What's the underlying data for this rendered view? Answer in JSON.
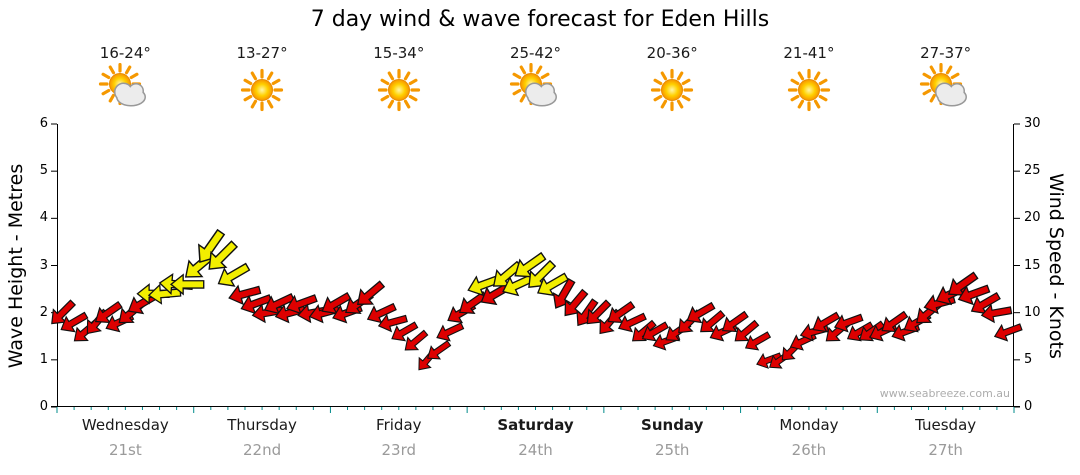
{
  "title": "7 day wind & wave forecast for Eden Hills",
  "watermark": "www.seabreeze.com.au",
  "left_axis": {
    "label": "Wave Height - Metres",
    "min": 0,
    "max": 6,
    "ticks": [
      0,
      1,
      2,
      3,
      4,
      5,
      6
    ]
  },
  "right_axis": {
    "label": "Wind Speed - Knots",
    "min": 0,
    "max": 30,
    "ticks": [
      0,
      5,
      10,
      15,
      20,
      25,
      30
    ]
  },
  "days": [
    {
      "name": "Wednesday",
      "date": "21st",
      "temps": "16-24°",
      "icon": "sun-cloud",
      "bold": false
    },
    {
      "name": "Thursday",
      "date": "22nd",
      "temps": "13-27°",
      "icon": "sun",
      "bold": false
    },
    {
      "name": "Friday",
      "date": "23rd",
      "temps": "15-34°",
      "icon": "sun",
      "bold": false
    },
    {
      "name": "Saturday",
      "date": "24th",
      "temps": "25-42°",
      "icon": "sun-cloud",
      "bold": true
    },
    {
      "name": "Sunday",
      "date": "25th",
      "temps": "20-36°",
      "icon": "sun",
      "bold": true
    },
    {
      "name": "Monday",
      "date": "26th",
      "temps": "21-41°",
      "icon": "sun",
      "bold": false
    },
    {
      "name": "Tuesday",
      "date": "27th",
      "temps": "27-37°",
      "icon": "sun-cloud",
      "bold": false
    }
  ],
  "colors": {
    "arrow_red": "#dd0000",
    "arrow_yellow": "#f2ee00",
    "arrow_outline": "#111111",
    "axis_black": "#000000",
    "minor_tick_teal": "#008b8b",
    "date_gray": "#9a9a9a"
  },
  "chart_data": {
    "type": "wind-arrows",
    "title": "7 day wind & wave forecast for Eden Hills",
    "x_categories": [
      "Wednesday 21st",
      "Thursday 22nd",
      "Friday 23rd",
      "Saturday 24th",
      "Sunday 25th",
      "Monday 26th",
      "Tuesday 27th"
    ],
    "points_per_day": 12,
    "wave_axis": {
      "label": "Wave Height - Metres",
      "range": [
        0,
        6
      ]
    },
    "wind_axis": {
      "label": "Wind Speed - Knots",
      "range": [
        0,
        30
      ]
    },
    "wind_knots": [
      10,
      9,
      8,
      9,
      10,
      9,
      10,
      11,
      12,
      12,
      13,
      13,
      15,
      17,
      16,
      14,
      12,
      11,
      10,
      11,
      10,
      11,
      10,
      10,
      11,
      10,
      11,
      12,
      10,
      9,
      8,
      7,
      5,
      6,
      8,
      10,
      11,
      13,
      12,
      14,
      13,
      15,
      14,
      13,
      12,
      11,
      10,
      10,
      9,
      10,
      9,
      8,
      8,
      7,
      8,
      9,
      10,
      9,
      8,
      9,
      8,
      7,
      5,
      5,
      6,
      7,
      8,
      9,
      8,
      9,
      8,
      8,
      8,
      9,
      8,
      9,
      10,
      11,
      12,
      13,
      12,
      11,
      10,
      8
    ],
    "wind_color": [
      "r",
      "r",
      "r",
      "r",
      "r",
      "r",
      "r",
      "r",
      "y",
      "y",
      "y",
      "y",
      "y",
      "y",
      "y",
      "y",
      "r",
      "r",
      "r",
      "r",
      "r",
      "r",
      "r",
      "r",
      "r",
      "r",
      "r",
      "r",
      "r",
      "r",
      "r",
      "r",
      "r",
      "r",
      "r",
      "r",
      "r",
      "y",
      "r",
      "y",
      "y",
      "y",
      "y",
      "y",
      "r",
      "r",
      "r",
      "r",
      "r",
      "r",
      "r",
      "r",
      "r",
      "r",
      "r",
      "r",
      "r",
      "r",
      "r",
      "r",
      "r",
      "r",
      "r",
      "r",
      "r",
      "r",
      "r",
      "r",
      "r",
      "r",
      "r",
      "r",
      "r",
      "r",
      "r",
      "r",
      "r",
      "r",
      "r",
      "r",
      "r",
      "r",
      "r",
      "r"
    ],
    "wind_dir_deg": [
      225,
      240,
      230,
      220,
      235,
      245,
      230,
      240,
      270,
      265,
      275,
      270,
      230,
      215,
      225,
      240,
      255,
      250,
      260,
      245,
      255,
      250,
      260,
      255,
      240,
      250,
      235,
      230,
      245,
      255,
      240,
      230,
      220,
      235,
      245,
      240,
      235,
      250,
      240,
      230,
      245,
      235,
      225,
      240,
      210,
      220,
      215,
      225,
      220,
      235,
      245,
      230,
      240,
      250,
      235,
      225,
      240,
      230,
      245,
      235,
      230,
      240,
      250,
      235,
      225,
      245,
      255,
      240,
      230,
      250,
      240,
      235,
      245,
      235,
      250,
      240,
      230,
      255,
      245,
      235,
      250,
      240,
      260,
      250
    ]
  }
}
